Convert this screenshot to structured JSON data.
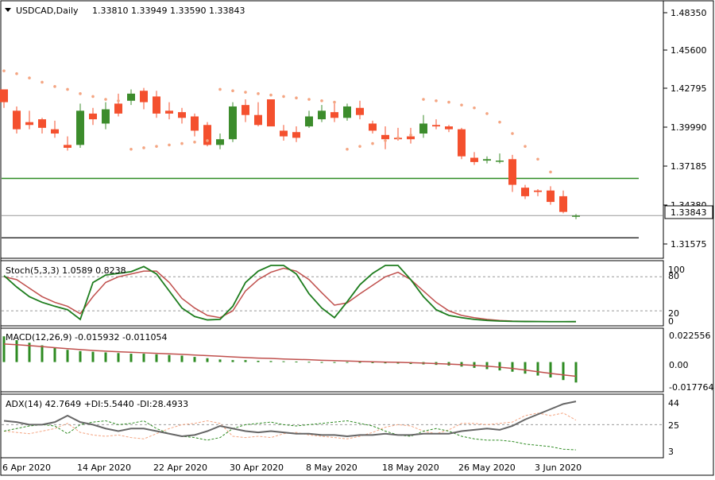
{
  "header": {
    "symbol": "USDCAD,Daily",
    "ohlc": "1.33810 1.33949 1.33590 1.33843"
  },
  "price_panel": {
    "current_price_label": "1.33843",
    "price_ticks": [
      "1.48350",
      "1.45600",
      "1.42795",
      "1.39990",
      "1.37185",
      "1.34380",
      "1.31575"
    ]
  },
  "stoch_panel": {
    "label": "Stoch(5,3,3) 1.0589 0.8238",
    "ticks": [
      "100",
      "80",
      "20",
      "0"
    ]
  },
  "macd_panel": {
    "label": "MACD(12,26,9) -0.015932 -0.011054",
    "ticks": [
      "0.022556",
      "0.00",
      "-0.017764"
    ]
  },
  "adx_panel": {
    "label": "ADX(14) 42.7649 +DI:5.5440 -DI:28.4933",
    "ticks": [
      "44",
      "25",
      "3"
    ]
  },
  "time_axis": {
    "labels": [
      "6 Apr 2020",
      "14 Apr 2020",
      "22 Apr 2020",
      "30 Apr 2020",
      "8 May 2020",
      "18 May 2020",
      "26 May 2020",
      "3 Jun 2020"
    ]
  },
  "colors": {
    "bull": "#3c8c2c",
    "bear": "#f4502e",
    "sar": "#f4a582",
    "stoch_main": "#1e7d1e",
    "stoch_signal": "#c0504d",
    "macd_hist": "#2e8b22",
    "macd_signal": "#c0504d",
    "adx": "#666666",
    "plus_di": "#2e8b22",
    "minus_di": "#f4a582",
    "support_line": "#2e8b22",
    "level_line": "#333333"
  },
  "chart_data": [
    {
      "type": "candlestick",
      "title": "USDCAD,Daily",
      "dates": [
        "2020-04-06",
        "2020-04-07",
        "2020-04-08",
        "2020-04-09",
        "2020-04-10",
        "2020-04-13",
        "2020-04-14",
        "2020-04-15",
        "2020-04-16",
        "2020-04-17",
        "2020-04-20",
        "2020-04-21",
        "2020-04-22",
        "2020-04-23",
        "2020-04-24",
        "2020-04-27",
        "2020-04-28",
        "2020-04-29",
        "2020-04-30",
        "2020-05-01",
        "2020-05-04",
        "2020-05-05",
        "2020-05-06",
        "2020-05-07",
        "2020-05-08",
        "2020-05-11",
        "2020-05-12",
        "2020-05-13",
        "2020-05-14",
        "2020-05-15",
        "2020-05-18",
        "2020-05-19",
        "2020-05-20",
        "2020-05-21",
        "2020-05-22",
        "2020-05-25",
        "2020-05-26",
        "2020-05-27",
        "2020-05-28",
        "2020-05-29",
        "2020-06-01",
        "2020-06-02",
        "2020-06-03",
        "2020-06-04",
        "2020-06-05",
        "2020-06-08"
      ],
      "open": [
        1.427,
        1.412,
        1.404,
        1.406,
        1.399,
        1.388,
        1.388,
        1.41,
        1.403,
        1.417,
        1.419,
        1.426,
        1.422,
        1.412,
        1.411,
        1.408,
        1.402,
        1.388,
        1.392,
        1.416,
        1.409,
        1.42,
        1.398,
        1.397,
        1.401,
        1.406,
        1.411,
        1.407,
        1.414,
        1.403,
        1.395,
        1.393,
        1.394,
        1.396,
        1.402,
        1.401,
        1.399,
        1.379,
        1.377,
        1.377,
        1.378,
        1.358,
        1.356,
        1.356,
        1.352,
        1.3381
      ],
      "close": [
        1.418,
        1.399,
        1.402,
        1.4,
        1.396,
        1.386,
        1.412,
        1.406,
        1.413,
        1.41,
        1.424,
        1.418,
        1.41,
        1.41,
        1.407,
        1.398,
        1.388,
        1.392,
        1.415,
        1.409,
        1.402,
        1.401,
        1.394,
        1.393,
        1.408,
        1.412,
        1.407,
        1.415,
        1.409,
        1.398,
        1.392,
        1.392,
        1.392,
        1.403,
        1.401,
        1.399,
        1.38,
        1.376,
        1.378,
        1.377,
        1.36,
        1.352,
        1.355,
        1.348,
        1.341,
        1.3384
      ],
      "high": [
        1.427,
        1.415,
        1.412,
        1.407,
        1.405,
        1.394,
        1.417,
        1.414,
        1.418,
        1.424,
        1.427,
        1.428,
        1.426,
        1.418,
        1.414,
        1.41,
        1.404,
        1.396,
        1.418,
        1.42,
        1.418,
        1.42,
        1.402,
        1.401,
        1.412,
        1.416,
        1.417,
        1.417,
        1.419,
        1.405,
        1.401,
        1.4,
        1.4,
        1.409,
        1.406,
        1.402,
        1.4,
        1.383,
        1.38,
        1.382,
        1.381,
        1.36,
        1.357,
        1.359,
        1.356,
        1.3395
      ],
      "low": [
        1.414,
        1.396,
        1.399,
        1.396,
        1.393,
        1.384,
        1.386,
        1.402,
        1.399,
        1.408,
        1.416,
        1.413,
        1.407,
        1.406,
        1.403,
        1.394,
        1.387,
        1.385,
        1.39,
        1.404,
        1.401,
        1.401,
        1.391,
        1.39,
        1.4,
        1.404,
        1.404,
        1.405,
        1.406,
        1.396,
        1.385,
        1.391,
        1.389,
        1.393,
        1.399,
        1.397,
        1.378,
        1.374,
        1.375,
        1.375,
        1.355,
        1.35,
        1.352,
        1.346,
        1.34,
        1.3359
      ],
      "sar": [
        1.44,
        1.438,
        1.435,
        1.432,
        1.429,
        1.427,
        1.424,
        1.422,
        1.42,
        1.419,
        1.385,
        1.386,
        1.387,
        1.388,
        1.389,
        1.39,
        1.391,
        1.427,
        1.426,
        1.425,
        1.424,
        1.423,
        1.422,
        1.421,
        1.42,
        1.419,
        1.418,
        1.385,
        1.387,
        1.389,
        1.391,
        1.393,
        1.395,
        1.42,
        1.419,
        1.418,
        1.416,
        1.414,
        1.41,
        1.404,
        1.396,
        1.387,
        1.378,
        1.369,
        null,
        null
      ],
      "horizontal_lines": [
        {
          "value": 1.3645,
          "color": "green"
        },
        {
          "value": 1.3384,
          "color": "gray"
        },
        {
          "value": 1.3228,
          "color": "black"
        }
      ],
      "ylim": [
        1.309,
        1.4886
      ]
    },
    {
      "type": "line",
      "title": "Stoch(5,3,3) 1.0589 0.8238",
      "series": [
        {
          "name": "Stoch",
          "values": [
            82,
            62,
            45,
            35,
            28,
            22,
            5,
            70,
            83,
            86,
            89,
            98,
            85,
            55,
            25,
            10,
            4,
            5,
            28,
            70,
            90,
            100,
            100,
            85,
            50,
            25,
            8,
            36,
            66,
            86,
            100,
            100,
            75,
            45,
            22,
            12,
            8,
            5,
            3,
            2,
            1.5,
            1.2,
            1.1,
            1.0,
            1.0,
            1.06
          ]
        },
        {
          "name": "Signal",
          "values": [
            80,
            75,
            60,
            45,
            35,
            28,
            15,
            45,
            70,
            80,
            85,
            90,
            90,
            70,
            42,
            25,
            12,
            8,
            20,
            55,
            75,
            88,
            95,
            90,
            75,
            52,
            30,
            34,
            50,
            65,
            80,
            88,
            75,
            55,
            35,
            20,
            12,
            8,
            5,
            3,
            2,
            1.5,
            1.2,
            1.0,
            0.9,
            0.82
          ]
        }
      ],
      "levels": [
        80,
        20
      ],
      "ylim": [
        -5,
        107
      ]
    },
    {
      "type": "bar",
      "title": "MACD(12,26,9) -0.015932 -0.011054",
      "series": [
        {
          "name": "MACD",
          "values": [
            0.02,
            0.017,
            0.015,
            0.013,
            0.011,
            0.0095,
            0.0085,
            0.008,
            0.0075,
            0.007,
            0.0065,
            0.0065,
            0.006,
            0.0055,
            0.005,
            0.004,
            0.003,
            0.002,
            0.0015,
            0.0015,
            0.001,
            0.0008,
            0.0006,
            0.0004,
            0.0002,
            0.0,
            -0.0002,
            -0.0004,
            -0.0006,
            -0.0008,
            -0.001,
            -0.0012,
            -0.0015,
            -0.0018,
            -0.0022,
            -0.0027,
            -0.0035,
            -0.0045,
            -0.0055,
            -0.0065,
            -0.0075,
            -0.009,
            -0.0105,
            -0.012,
            -0.014,
            -0.0159
          ]
        },
        {
          "name": "Signal",
          "values": [
            0.014,
            0.0135,
            0.0128,
            0.012,
            0.0112,
            0.0104,
            0.0097,
            0.009,
            0.0085,
            0.008,
            0.0076,
            0.0072,
            0.0068,
            0.0064,
            0.006,
            0.0055,
            0.005,
            0.0045,
            0.004,
            0.0035,
            0.0031,
            0.0028,
            0.0024,
            0.0021,
            0.0018,
            0.0014,
            0.0011,
            0.0008,
            0.0005,
            0.0002,
            0.0,
            -0.0002,
            -0.0005,
            -0.0008,
            -0.0012,
            -0.0016,
            -0.002,
            -0.0026,
            -0.0032,
            -0.004,
            -0.005,
            -0.0062,
            -0.0075,
            -0.0088,
            -0.01,
            -0.0111
          ]
        }
      ],
      "ylim": [
        -0.0225,
        0.0257
      ]
    },
    {
      "type": "line",
      "title": "ADX(14) 42.7649 +DI:5.5440 -DI:28.4933",
      "series": [
        {
          "name": "ADX",
          "values": [
            28,
            27,
            25,
            25,
            27,
            32,
            27,
            25,
            22,
            20,
            22,
            22,
            20,
            18,
            16,
            17,
            20,
            24,
            22,
            20,
            19,
            20,
            19,
            18,
            18,
            17,
            17,
            16,
            17,
            17,
            18,
            17,
            17,
            18,
            18,
            18,
            20,
            21,
            22,
            21,
            24,
            29,
            33,
            37,
            41,
            43
          ]
        },
        {
          "name": "+DI",
          "values": [
            20,
            22,
            24,
            25,
            24,
            18,
            25,
            27,
            28,
            25,
            26,
            28,
            22,
            18,
            16,
            15,
            13,
            15,
            22,
            25,
            26,
            27,
            25,
            24,
            25,
            26,
            27,
            28,
            26,
            24,
            20,
            17,
            16,
            20,
            22,
            20,
            16,
            14,
            13,
            13,
            12,
            10,
            9,
            8,
            6,
            5.5
          ]
        },
        {
          "name": "-DI",
          "values": [
            20,
            19,
            18,
            20,
            22,
            26,
            19,
            17,
            16,
            17,
            15,
            14,
            18,
            22,
            25,
            26,
            28,
            26,
            16,
            15,
            16,
            15,
            18,
            19,
            17,
            16,
            15,
            14,
            16,
            19,
            23,
            25,
            24,
            20,
            18,
            21,
            26,
            26,
            25,
            26,
            27,
            32,
            34,
            32,
            34,
            28.5
          ]
        }
      ],
      "levels": [
        25
      ],
      "ylim": [
        0,
        48
      ]
    }
  ]
}
